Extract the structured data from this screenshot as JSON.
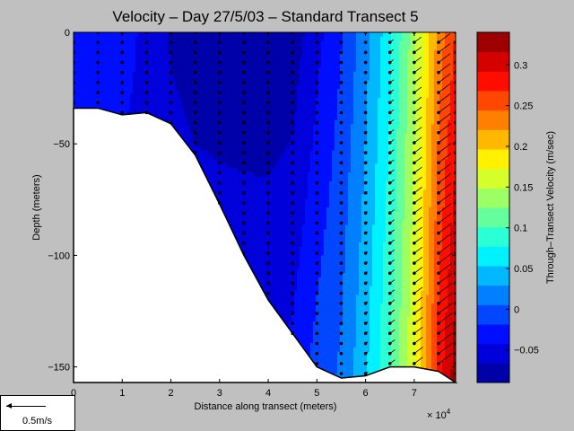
{
  "chart_data": {
    "type": "heatmap",
    "title": "Velocity – Day 27/5/03 – Standard Transect 5",
    "xlabel": "Distance along transect (meters)",
    "ylabel": "Depth (meters)",
    "x_multiplier_label": "× 10",
    "x_multiplier_exp": "4",
    "xlim": [
      0,
      7.85
    ],
    "ylim": [
      -157,
      0
    ],
    "x_ticks": [
      "0",
      "1",
      "2",
      "3",
      "4",
      "5",
      "6",
      "7"
    ],
    "y_ticks": [
      "0",
      "−50",
      "−100",
      "−150"
    ],
    "colorbar": {
      "label": "Through–Transect Velocity (m/sec)",
      "range": [
        -0.09,
        0.34
      ],
      "ticks": [
        "0.3",
        "0.25",
        "0.2",
        "0.15",
        "0.1",
        "0.05",
        "0",
        "−0.05"
      ],
      "tick_values": [
        0.3,
        0.25,
        0.2,
        0.15,
        0.1,
        0.05,
        0,
        -0.05
      ]
    },
    "bottom_profile": {
      "x": [
        0,
        0.5,
        1,
        1.5,
        2,
        2.5,
        3,
        3.5,
        4,
        4.5,
        5,
        5.5,
        6,
        6.5,
        7,
        7.5,
        7.85
      ],
      "depth": [
        -34,
        -34,
        -37,
        -36,
        -41,
        -55,
        -77,
        -100,
        -120,
        -135,
        -150,
        -155,
        -154,
        -150,
        -150,
        -152,
        -157
      ]
    },
    "velocity_sections": {
      "x": [
        0,
        0.5,
        1,
        1.5,
        2,
        2.5,
        3,
        3.5,
        4,
        4.5,
        5,
        5.5,
        6,
        6.5,
        7,
        7.5,
        7.85
      ],
      "surface": [
        -0.02,
        -0.02,
        -0.03,
        -0.05,
        -0.07,
        -0.08,
        -0.085,
        -0.085,
        -0.085,
        -0.08,
        -0.05,
        -0.02,
        0.02,
        0.07,
        0.14,
        0.23,
        0.27
      ],
      "deep": [
        -0.03,
        -0.03,
        -0.04,
        -0.05,
        -0.06,
        -0.065,
        -0.06,
        -0.055,
        -0.05,
        -0.04,
        -0.01,
        0.01,
        0.05,
        0.1,
        0.17,
        0.28,
        0.33
      ]
    },
    "legend": {
      "scale_label": "0.5m/s"
    },
    "colors": {
      "background": "#c0c0c0",
      "seabed": "#ffffff",
      "colormap": [
        "#00008f",
        "#0000ff",
        "#0080ff",
        "#00ffff",
        "#80ff80",
        "#ffff00",
        "#ff8000",
        "#ff0000",
        "#800000"
      ]
    }
  }
}
